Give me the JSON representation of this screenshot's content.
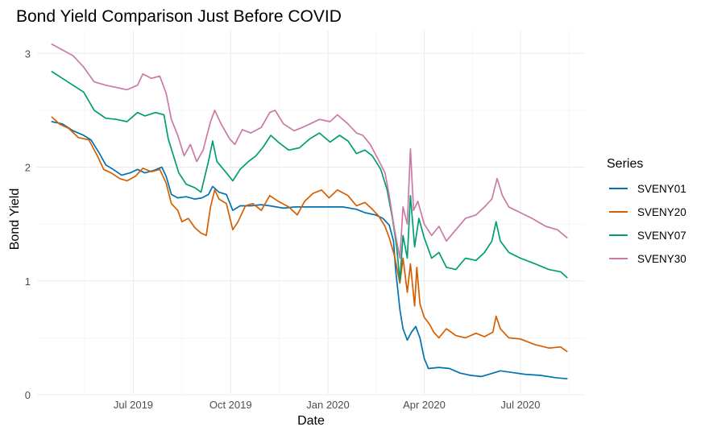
{
  "chart_data": {
    "type": "line",
    "title": "Bond Yield Comparison Just Before COVID",
    "xlabel": "Date",
    "ylabel": "Bond Yield",
    "legend_title": "Series",
    "legend_position": "right",
    "grid": true,
    "x_type": "date",
    "xlim": [
      "2019-04-01",
      "2020-08-31"
    ],
    "ylim": [
      0,
      3.2
    ],
    "x_ticks": [
      {
        "date": "2019-07-01",
        "label": "Jul 2019"
      },
      {
        "date": "2019-10-01",
        "label": "Oct 2019"
      },
      {
        "date": "2020-01-01",
        "label": "Jan 2020"
      },
      {
        "date": "2020-04-01",
        "label": "Apr 2020"
      },
      {
        "date": "2020-07-01",
        "label": "Jul 2020"
      }
    ],
    "y_ticks": [
      {
        "value": 0,
        "label": "0"
      },
      {
        "value": 1,
        "label": "1"
      },
      {
        "value": 2,
        "label": "2"
      },
      {
        "value": 3,
        "label": "3"
      }
    ],
    "series": [
      {
        "name": "SVENY01",
        "color": "#0072B2",
        "points": [
          [
            "2019-04-15",
            2.4
          ],
          [
            "2019-04-25",
            2.38
          ],
          [
            "2019-05-05",
            2.32
          ],
          [
            "2019-05-15",
            2.28
          ],
          [
            "2019-05-22",
            2.24
          ],
          [
            "2019-05-30",
            2.12
          ],
          [
            "2019-06-05",
            2.02
          ],
          [
            "2019-06-12",
            1.98
          ],
          [
            "2019-06-20",
            1.93
          ],
          [
            "2019-06-28",
            1.95
          ],
          [
            "2019-07-05",
            1.98
          ],
          [
            "2019-07-12",
            1.95
          ],
          [
            "2019-07-20",
            1.97
          ],
          [
            "2019-07-28",
            2.0
          ],
          [
            "2019-08-01",
            1.92
          ],
          [
            "2019-08-06",
            1.76
          ],
          [
            "2019-08-12",
            1.73
          ],
          [
            "2019-08-20",
            1.74
          ],
          [
            "2019-08-28",
            1.72
          ],
          [
            "2019-09-04",
            1.73
          ],
          [
            "2019-09-10",
            1.76
          ],
          [
            "2019-09-14",
            1.83
          ],
          [
            "2019-09-20",
            1.78
          ],
          [
            "2019-09-27",
            1.76
          ],
          [
            "2019-10-03",
            1.62
          ],
          [
            "2019-10-10",
            1.66
          ],
          [
            "2019-10-20",
            1.66
          ],
          [
            "2019-10-30",
            1.67
          ],
          [
            "2019-11-07",
            1.66
          ],
          [
            "2019-11-20",
            1.64
          ],
          [
            "2019-12-01",
            1.65
          ],
          [
            "2019-12-15",
            1.65
          ],
          [
            "2020-01-01",
            1.65
          ],
          [
            "2020-01-15",
            1.65
          ],
          [
            "2020-01-28",
            1.63
          ],
          [
            "2020-02-05",
            1.6
          ],
          [
            "2020-02-15",
            1.58
          ],
          [
            "2020-02-22",
            1.55
          ],
          [
            "2020-02-28",
            1.49
          ],
          [
            "2020-03-03",
            1.35
          ],
          [
            "2020-03-05",
            1.1
          ],
          [
            "2020-03-09",
            0.75
          ],
          [
            "2020-03-12",
            0.58
          ],
          [
            "2020-03-16",
            0.48
          ],
          [
            "2020-03-20",
            0.55
          ],
          [
            "2020-03-24",
            0.6
          ],
          [
            "2020-03-28",
            0.5
          ],
          [
            "2020-04-01",
            0.32
          ],
          [
            "2020-04-05",
            0.23
          ],
          [
            "2020-04-15",
            0.24
          ],
          [
            "2020-04-25",
            0.23
          ],
          [
            "2020-05-05",
            0.19
          ],
          [
            "2020-05-15",
            0.17
          ],
          [
            "2020-05-25",
            0.16
          ],
          [
            "2020-06-05",
            0.19
          ],
          [
            "2020-06-12",
            0.21
          ],
          [
            "2020-06-20",
            0.2
          ],
          [
            "2020-07-05",
            0.18
          ],
          [
            "2020-07-20",
            0.17
          ],
          [
            "2020-08-03",
            0.15
          ],
          [
            "2020-08-14",
            0.14
          ]
        ]
      },
      {
        "name": "SVENY20",
        "color": "#D55E00",
        "points": [
          [
            "2019-04-15",
            2.44
          ],
          [
            "2019-04-22",
            2.38
          ],
          [
            "2019-05-01",
            2.34
          ],
          [
            "2019-05-10",
            2.26
          ],
          [
            "2019-05-20",
            2.24
          ],
          [
            "2019-05-28",
            2.1
          ],
          [
            "2019-06-03",
            1.98
          ],
          [
            "2019-06-10",
            1.95
          ],
          [
            "2019-06-18",
            1.9
          ],
          [
            "2019-06-25",
            1.88
          ],
          [
            "2019-07-03",
            1.92
          ],
          [
            "2019-07-10",
            1.99
          ],
          [
            "2019-07-18",
            1.96
          ],
          [
            "2019-07-26",
            1.98
          ],
          [
            "2019-08-01",
            1.86
          ],
          [
            "2019-08-06",
            1.68
          ],
          [
            "2019-08-12",
            1.62
          ],
          [
            "2019-08-16",
            1.52
          ],
          [
            "2019-08-22",
            1.55
          ],
          [
            "2019-08-28",
            1.47
          ],
          [
            "2019-09-03",
            1.42
          ],
          [
            "2019-09-08",
            1.4
          ],
          [
            "2019-09-12",
            1.65
          ],
          [
            "2019-09-16",
            1.8
          ],
          [
            "2019-09-20",
            1.72
          ],
          [
            "2019-09-27",
            1.68
          ],
          [
            "2019-10-03",
            1.45
          ],
          [
            "2019-10-08",
            1.52
          ],
          [
            "2019-10-15",
            1.66
          ],
          [
            "2019-10-22",
            1.68
          ],
          [
            "2019-10-30",
            1.62
          ],
          [
            "2019-11-07",
            1.75
          ],
          [
            "2019-11-15",
            1.7
          ],
          [
            "2019-11-25",
            1.65
          ],
          [
            "2019-12-03",
            1.58
          ],
          [
            "2019-12-10",
            1.7
          ],
          [
            "2019-12-18",
            1.77
          ],
          [
            "2019-12-26",
            1.8
          ],
          [
            "2020-01-02",
            1.73
          ],
          [
            "2020-01-10",
            1.8
          ],
          [
            "2020-01-20",
            1.75
          ],
          [
            "2020-01-28",
            1.66
          ],
          [
            "2020-02-05",
            1.69
          ],
          [
            "2020-02-12",
            1.63
          ],
          [
            "2020-02-18",
            1.57
          ],
          [
            "2020-02-24",
            1.48
          ],
          [
            "2020-02-28",
            1.38
          ],
          [
            "2020-03-04",
            1.22
          ],
          [
            "2020-03-09",
            0.98
          ],
          [
            "2020-03-12",
            1.2
          ],
          [
            "2020-03-16",
            0.9
          ],
          [
            "2020-03-19",
            1.15
          ],
          [
            "2020-03-23",
            0.78
          ],
          [
            "2020-03-25",
            1.12
          ],
          [
            "2020-03-28",
            0.8
          ],
          [
            "2020-04-01",
            0.68
          ],
          [
            "2020-04-06",
            0.62
          ],
          [
            "2020-04-10",
            0.55
          ],
          [
            "2020-04-15",
            0.5
          ],
          [
            "2020-04-22",
            0.58
          ],
          [
            "2020-05-01",
            0.52
          ],
          [
            "2020-05-10",
            0.5
          ],
          [
            "2020-05-20",
            0.54
          ],
          [
            "2020-05-28",
            0.51
          ],
          [
            "2020-06-05",
            0.55
          ],
          [
            "2020-06-08",
            0.69
          ],
          [
            "2020-06-12",
            0.58
          ],
          [
            "2020-06-20",
            0.5
          ],
          [
            "2020-07-01",
            0.49
          ],
          [
            "2020-07-15",
            0.44
          ],
          [
            "2020-07-28",
            0.41
          ],
          [
            "2020-08-08",
            0.42
          ],
          [
            "2020-08-14",
            0.38
          ]
        ]
      },
      {
        "name": "SVENY07",
        "color": "#009E73",
        "points": [
          [
            "2019-04-15",
            2.84
          ],
          [
            "2019-04-25",
            2.78
          ],
          [
            "2019-05-05",
            2.72
          ],
          [
            "2019-05-15",
            2.66
          ],
          [
            "2019-05-25",
            2.5
          ],
          [
            "2019-06-05",
            2.43
          ],
          [
            "2019-06-15",
            2.42
          ],
          [
            "2019-06-25",
            2.4
          ],
          [
            "2019-07-05",
            2.48
          ],
          [
            "2019-07-12",
            2.45
          ],
          [
            "2019-07-22",
            2.48
          ],
          [
            "2019-07-30",
            2.46
          ],
          [
            "2019-08-03",
            2.25
          ],
          [
            "2019-08-08",
            2.1
          ],
          [
            "2019-08-13",
            1.95
          ],
          [
            "2019-08-20",
            1.85
          ],
          [
            "2019-08-28",
            1.82
          ],
          [
            "2019-09-03",
            1.78
          ],
          [
            "2019-09-10",
            2.05
          ],
          [
            "2019-09-14",
            2.23
          ],
          [
            "2019-09-18",
            2.05
          ],
          [
            "2019-09-27",
            1.95
          ],
          [
            "2019-10-03",
            1.88
          ],
          [
            "2019-10-10",
            1.98
          ],
          [
            "2019-10-18",
            2.05
          ],
          [
            "2019-10-25",
            2.1
          ],
          [
            "2019-11-01",
            2.18
          ],
          [
            "2019-11-08",
            2.28
          ],
          [
            "2019-11-15",
            2.22
          ],
          [
            "2019-11-25",
            2.15
          ],
          [
            "2019-12-05",
            2.17
          ],
          [
            "2019-12-15",
            2.25
          ],
          [
            "2019-12-24",
            2.3
          ],
          [
            "2020-01-03",
            2.22
          ],
          [
            "2020-01-12",
            2.28
          ],
          [
            "2020-01-20",
            2.23
          ],
          [
            "2020-01-28",
            2.12
          ],
          [
            "2020-02-05",
            2.15
          ],
          [
            "2020-02-12",
            2.1
          ],
          [
            "2020-02-20",
            1.98
          ],
          [
            "2020-02-26",
            1.8
          ],
          [
            "2020-03-02",
            1.55
          ],
          [
            "2020-03-06",
            1.3
          ],
          [
            "2020-03-09",
            1.0
          ],
          [
            "2020-03-12",
            1.4
          ],
          [
            "2020-03-16",
            1.2
          ],
          [
            "2020-03-19",
            1.75
          ],
          [
            "2020-03-23",
            1.3
          ],
          [
            "2020-03-27",
            1.55
          ],
          [
            "2020-04-01",
            1.38
          ],
          [
            "2020-04-08",
            1.2
          ],
          [
            "2020-04-15",
            1.25
          ],
          [
            "2020-04-22",
            1.12
          ],
          [
            "2020-05-01",
            1.1
          ],
          [
            "2020-05-10",
            1.2
          ],
          [
            "2020-05-20",
            1.18
          ],
          [
            "2020-05-28",
            1.25
          ],
          [
            "2020-06-04",
            1.35
          ],
          [
            "2020-06-08",
            1.52
          ],
          [
            "2020-06-12",
            1.35
          ],
          [
            "2020-06-20",
            1.25
          ],
          [
            "2020-07-01",
            1.2
          ],
          [
            "2020-07-15",
            1.15
          ],
          [
            "2020-07-28",
            1.1
          ],
          [
            "2020-08-08",
            1.08
          ],
          [
            "2020-08-14",
            1.03
          ]
        ]
      },
      {
        "name": "SVENY30",
        "color": "#CC79A7",
        "points": [
          [
            "2019-04-15",
            3.08
          ],
          [
            "2019-04-25",
            3.03
          ],
          [
            "2019-05-05",
            2.98
          ],
          [
            "2019-05-15",
            2.88
          ],
          [
            "2019-05-25",
            2.75
          ],
          [
            "2019-06-05",
            2.72
          ],
          [
            "2019-06-15",
            2.7
          ],
          [
            "2019-06-25",
            2.68
          ],
          [
            "2019-07-05",
            2.72
          ],
          [
            "2019-07-10",
            2.82
          ],
          [
            "2019-07-18",
            2.78
          ],
          [
            "2019-07-26",
            2.8
          ],
          [
            "2019-08-01",
            2.65
          ],
          [
            "2019-08-06",
            2.42
          ],
          [
            "2019-08-12",
            2.28
          ],
          [
            "2019-08-18",
            2.1
          ],
          [
            "2019-08-24",
            2.2
          ],
          [
            "2019-08-30",
            2.05
          ],
          [
            "2019-09-05",
            2.15
          ],
          [
            "2019-09-12",
            2.4
          ],
          [
            "2019-09-16",
            2.5
          ],
          [
            "2019-09-22",
            2.38
          ],
          [
            "2019-09-30",
            2.25
          ],
          [
            "2019-10-05",
            2.2
          ],
          [
            "2019-10-12",
            2.33
          ],
          [
            "2019-10-20",
            2.3
          ],
          [
            "2019-10-30",
            2.35
          ],
          [
            "2019-11-07",
            2.48
          ],
          [
            "2019-11-12",
            2.5
          ],
          [
            "2019-11-20",
            2.38
          ],
          [
            "2019-11-30",
            2.32
          ],
          [
            "2019-12-08",
            2.35
          ],
          [
            "2019-12-15",
            2.38
          ],
          [
            "2019-12-24",
            2.42
          ],
          [
            "2020-01-03",
            2.4
          ],
          [
            "2020-01-10",
            2.46
          ],
          [
            "2020-01-20",
            2.38
          ],
          [
            "2020-01-28",
            2.3
          ],
          [
            "2020-02-03",
            2.28
          ],
          [
            "2020-02-10",
            2.2
          ],
          [
            "2020-02-18",
            2.06
          ],
          [
            "2020-02-24",
            1.95
          ],
          [
            "2020-02-28",
            1.75
          ],
          [
            "2020-03-04",
            1.45
          ],
          [
            "2020-03-09",
            1.2
          ],
          [
            "2020-03-12",
            1.65
          ],
          [
            "2020-03-16",
            1.5
          ],
          [
            "2020-03-19",
            2.16
          ],
          [
            "2020-03-22",
            1.62
          ],
          [
            "2020-03-26",
            1.7
          ],
          [
            "2020-04-01",
            1.5
          ],
          [
            "2020-04-08",
            1.4
          ],
          [
            "2020-04-15",
            1.48
          ],
          [
            "2020-04-22",
            1.35
          ],
          [
            "2020-05-01",
            1.45
          ],
          [
            "2020-05-10",
            1.55
          ],
          [
            "2020-05-20",
            1.58
          ],
          [
            "2020-05-28",
            1.65
          ],
          [
            "2020-06-04",
            1.72
          ],
          [
            "2020-06-09",
            1.9
          ],
          [
            "2020-06-14",
            1.75
          ],
          [
            "2020-06-20",
            1.65
          ],
          [
            "2020-07-01",
            1.6
          ],
          [
            "2020-07-12",
            1.55
          ],
          [
            "2020-07-25",
            1.48
          ],
          [
            "2020-08-05",
            1.45
          ],
          [
            "2020-08-14",
            1.38
          ]
        ]
      }
    ]
  }
}
